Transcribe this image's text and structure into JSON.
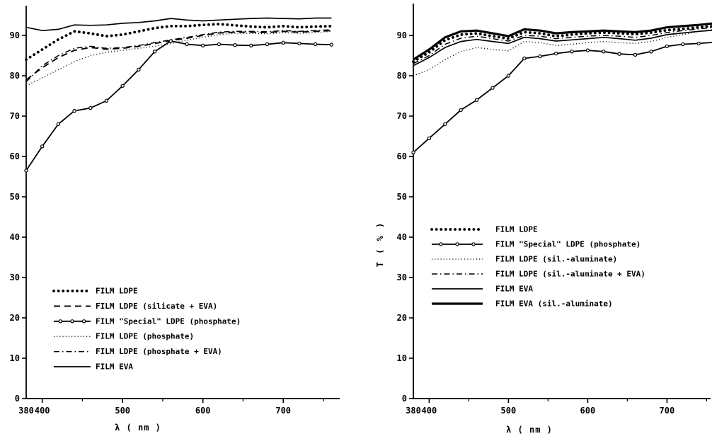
{
  "figure": {
    "background": "#ffffff",
    "ink": "#000000"
  },
  "chart_data": [
    {
      "id": "left",
      "type": "line",
      "title": "",
      "xlabel": "λ   ( nm )",
      "ylabel": "",
      "x_ticks": [
        380,
        400,
        500,
        600,
        700
      ],
      "x_minor_ticks": [
        450,
        550,
        650,
        750
      ],
      "y_ticks": [
        0,
        10,
        20,
        30,
        40,
        50,
        60,
        70,
        80,
        90
      ],
      "xlim": [
        380,
        770
      ],
      "ylim": [
        0,
        98
      ],
      "grid": false,
      "legend_position": "lower-left",
      "x": [
        380,
        400,
        420,
        440,
        460,
        480,
        500,
        520,
        540,
        560,
        580,
        600,
        620,
        640,
        660,
        680,
        700,
        720,
        740,
        760
      ],
      "series": [
        {
          "name": "FILM LDPE",
          "style": "bold-dotted",
          "values": [
            84,
            86.5,
            89,
            91,
            90.5,
            89.8,
            90.2,
            91,
            91.8,
            92.3,
            92.3,
            92.6,
            92.8,
            92.5,
            92.2,
            92,
            92.3,
            92,
            92.2,
            92.3
          ]
        },
        {
          "name": "FILM LDPE (silicate + EVA)",
          "style": "dashed",
          "values": [
            79,
            82,
            84.5,
            86.3,
            87,
            86.6,
            86.8,
            87.3,
            88,
            88.7,
            89.3,
            90,
            90.6,
            90.8,
            90.8,
            90.7,
            91,
            90.8,
            91,
            91.2
          ]
        },
        {
          "name": "FILM \"Special\" LDPE (phosphate)",
          "style": "marker-line",
          "values": [
            56.5,
            62.5,
            68,
            71.3,
            72,
            73.8,
            77.5,
            81.5,
            86,
            88.6,
            87.8,
            87.5,
            87.8,
            87.6,
            87.5,
            87.8,
            88.2,
            88,
            87.8,
            87.7
          ]
        },
        {
          "name": "FILM LDPE (phosphate)",
          "style": "fine-dotted",
          "values": [
            77.5,
            79.5,
            81.5,
            83.5,
            85,
            85.8,
            86.3,
            86.8,
            87.3,
            88,
            88.8,
            89.5,
            90.2,
            90.5,
            90.5,
            90.4,
            90.7,
            90.5,
            90.7,
            91
          ]
        },
        {
          "name": "FILM LDPE (phosphate + EVA)",
          "style": "dash-dot",
          "values": [
            78.5,
            82.5,
            85,
            86.8,
            87.3,
            86.8,
            87,
            87.5,
            88.2,
            88.9,
            89.5,
            90.2,
            90.8,
            91,
            91,
            90.9,
            91.2,
            91,
            91.2,
            91.4
          ]
        },
        {
          "name": "FILM EVA",
          "style": "solid",
          "values": [
            92,
            91.2,
            91.5,
            92.6,
            92.5,
            92.6,
            93,
            93.2,
            93.6,
            94.2,
            93.8,
            93.6,
            93.8,
            94,
            94.2,
            94.3,
            94.2,
            94.1,
            94.3,
            94.3
          ]
        }
      ]
    },
    {
      "id": "right",
      "type": "line",
      "title": "",
      "xlabel": "λ   ( nm )",
      "ylabel": "T  ( % )",
      "x_ticks": [
        380,
        400,
        500,
        600,
        700
      ],
      "x_minor_ticks": [
        450,
        550,
        650,
        750
      ],
      "y_ticks": [
        0,
        10,
        20,
        30,
        40,
        50,
        60,
        70,
        80,
        90
      ],
      "xlim": [
        380,
        760
      ],
      "ylim": [
        0,
        98
      ],
      "grid": false,
      "legend_position": "center-left",
      "x": [
        380,
        400,
        420,
        440,
        460,
        480,
        500,
        520,
        540,
        560,
        580,
        600,
        620,
        640,
        660,
        680,
        700,
        720,
        740,
        760
      ],
      "series": [
        {
          "name": "FILM LDPE",
          "style": "bold-dotted",
          "values": [
            83.5,
            85.8,
            88.8,
            90.2,
            90.5,
            89.8,
            89.2,
            90.8,
            90.5,
            89.8,
            90.2,
            90.5,
            90.7,
            90.5,
            90.3,
            90.7,
            91.3,
            91.6,
            92,
            92.3
          ]
        },
        {
          "name": "FILM \"Special\" LDPE (phosphate)",
          "style": "marker-line",
          "values": [
            61,
            64.5,
            68,
            71.5,
            74,
            77,
            80,
            84.3,
            84.8,
            85.5,
            86,
            86.3,
            86,
            85.4,
            85.2,
            86,
            87.3,
            87.8,
            88,
            88.3
          ]
        },
        {
          "name": "FILM LDPE (sil.-aluminate)",
          "style": "fine-dotted",
          "values": [
            80,
            81.5,
            84,
            86,
            87,
            86.5,
            86.2,
            88.5,
            88.2,
            87.5,
            87.8,
            88.2,
            88.5,
            88.2,
            88,
            88.5,
            89.5,
            90.2,
            91,
            91.5
          ]
        },
        {
          "name": "FILM LDPE (sil.-aluminate + EVA)",
          "style": "dash-dot",
          "values": [
            83,
            85,
            87.8,
            89.3,
            89.8,
            89.2,
            88.6,
            90,
            89.8,
            89.2,
            89.5,
            89.8,
            90,
            89.8,
            89.5,
            90,
            90.7,
            91.2,
            91.6,
            92
          ]
        },
        {
          "name": "FILM EVA",
          "style": "solid",
          "values": [
            82.5,
            84.5,
            87,
            88.5,
            89,
            88.5,
            88,
            89.5,
            89.2,
            88.6,
            88.9,
            89.2,
            89.5,
            89.2,
            88.8,
            89.3,
            90.2,
            90.6,
            91,
            91.3
          ]
        },
        {
          "name": "FILM EVA (sil.-aluminate)",
          "style": "solid-thick",
          "values": [
            84,
            86.5,
            89.5,
            91,
            91.2,
            90.5,
            89.8,
            91.5,
            91.2,
            90.5,
            90.8,
            91,
            91.2,
            91,
            90.8,
            91.2,
            92,
            92.3,
            92.6,
            93
          ]
        }
      ]
    }
  ]
}
